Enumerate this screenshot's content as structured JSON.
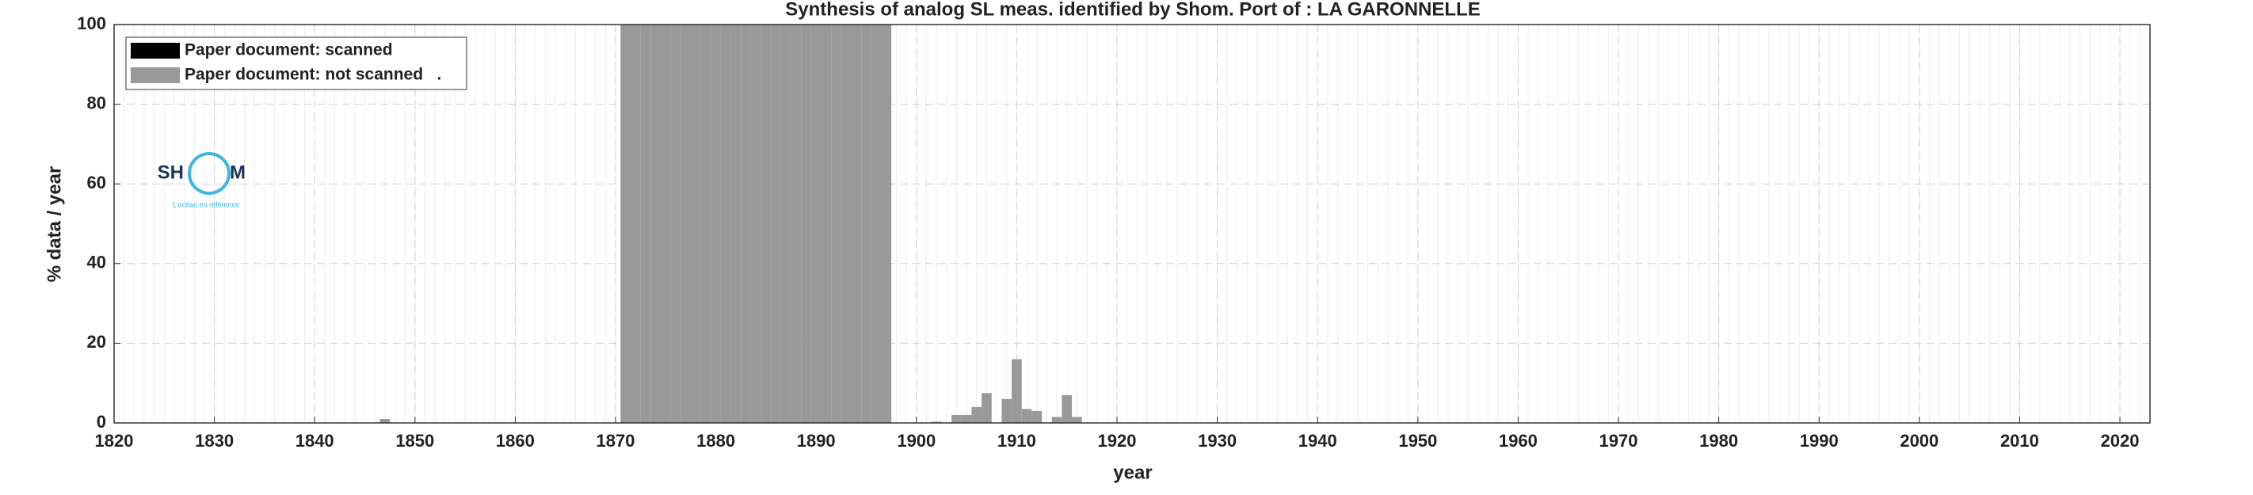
{
  "chart_data": {
    "type": "bar",
    "title": "Synthesis of analog SL meas. identified by Shom. Port of : LA GARONNELLE",
    "x_label": "year",
    "y_label": "% data / year",
    "x": [
      1847,
      1871,
      1872,
      1873,
      1874,
      1875,
      1876,
      1877,
      1878,
      1879,
      1880,
      1881,
      1882,
      1883,
      1884,
      1885,
      1886,
      1887,
      1888,
      1889,
      1890,
      1891,
      1892,
      1893,
      1894,
      1895,
      1896,
      1897,
      1902,
      1904,
      1905,
      1906,
      1907,
      1909,
      1910,
      1911,
      1912,
      1914,
      1915,
      1916
    ],
    "series": [
      {
        "name": "Paper document: scanned",
        "color": "#000000",
        "values": [
          0,
          0,
          0,
          0,
          0,
          0,
          0,
          0,
          0,
          0,
          0,
          0,
          0,
          0,
          0,
          0,
          0,
          0,
          0,
          0,
          0,
          0,
          0,
          0,
          0,
          0,
          0,
          0,
          0,
          0,
          0,
          0,
          0,
          0,
          0,
          0,
          0,
          0,
          0,
          0
        ]
      },
      {
        "name": "Paper document: not scanned   .",
        "color": "#999999",
        "values": [
          1,
          100,
          100,
          100,
          100,
          100,
          100,
          100,
          100,
          100,
          100,
          100,
          100,
          100,
          100,
          100,
          100,
          100,
          100,
          100,
          100,
          100,
          100,
          100,
          100,
          100,
          100,
          100,
          0.3,
          2,
          2,
          4,
          7.5,
          6,
          16,
          3.5,
          3,
          1.5,
          7,
          1.5
        ]
      }
    ],
    "xlim": [
      1820,
      2023
    ],
    "xticks": [
      1820,
      1830,
      1840,
      1850,
      1860,
      1870,
      1880,
      1890,
      1900,
      1910,
      1920,
      1930,
      1940,
      1950,
      1960,
      1970,
      1980,
      1990,
      2000,
      2010,
      2020
    ],
    "ylim": [
      0,
      100
    ],
    "yticks": [
      0,
      20,
      40,
      60,
      80,
      100
    ],
    "grid": true,
    "minor_grid": true,
    "legend": "upper-left",
    "logo": {
      "left": "SH",
      "right": "M",
      "tagline": "L'océan en référence"
    }
  }
}
